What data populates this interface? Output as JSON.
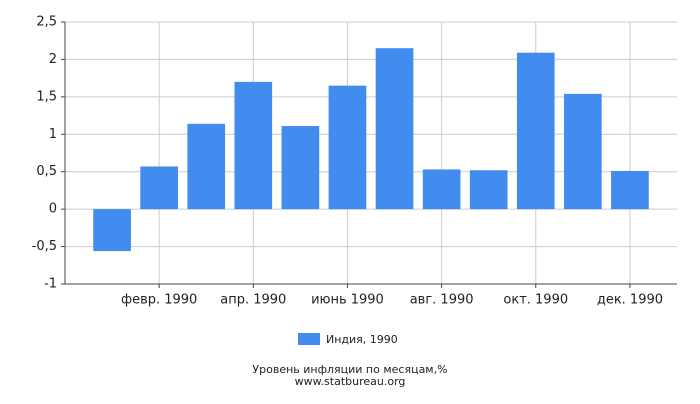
{
  "chart_data": {
    "type": "bar",
    "title": "Уровень инфляции по месяцам,%",
    "source": "www.statbureau.org",
    "categories": [
      null,
      "февр. 1990",
      null,
      "апр. 1990",
      null,
      "июнь 1990",
      null,
      "авг. 1990",
      null,
      "окт. 1990",
      null,
      "дек. 1990"
    ],
    "series": [
      {
        "name": "Индия, 1990",
        "color": "#428bef",
        "values": [
          -0.56,
          0.57,
          1.14,
          1.7,
          1.11,
          1.65,
          2.15,
          0.53,
          0.52,
          2.09,
          1.54,
          0.51
        ]
      }
    ],
    "ylim": [
      -1,
      2.5
    ],
    "yticks": [
      -1,
      {
        "value": -0.5,
        "label": "-0,5"
      },
      0,
      {
        "value": 0.5,
        "label": "0,5"
      },
      1,
      {
        "value": 1.5,
        "label": "1,5"
      },
      2,
      {
        "value": 2.5,
        "label": "2,5"
      }
    ],
    "grid": true,
    "legend": "bottom"
  }
}
